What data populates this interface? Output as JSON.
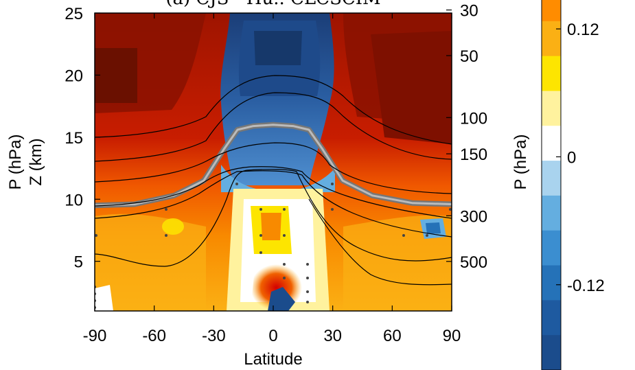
{
  "chart_data": {
    "type": "heatmap",
    "title": "(a) CJS - Hu.. CLCSCIM",
    "xlabel": "Latitude",
    "ylabel_left": "P (hPa)",
    "ylabel_left_secondary": "Z (km)",
    "ylabel_colorbar": "P (hPa)",
    "x_ticks": [
      "-90",
      "-60",
      "-30",
      "0",
      "30",
      "60",
      "90"
    ],
    "x_range": [
      -90,
      90
    ],
    "z_ticks": [
      "5",
      "10",
      "15",
      "20",
      "25"
    ],
    "z_range": [
      1,
      25
    ],
    "p_ticks": [
      "500",
      "300",
      "150",
      "100",
      "50",
      "30"
    ],
    "colorbar_ticks": [
      "0.12",
      "0",
      "-0.12"
    ],
    "colorbar_range": [
      -0.2,
      0.16
    ],
    "colorbar_levels": [
      {
        "color": "#ff8c00"
      },
      {
        "color": "#fbb014"
      },
      {
        "color": "#fde500"
      },
      {
        "color": "#fff29e"
      },
      {
        "color": "#ffffff"
      },
      {
        "color": "#a9d3ee"
      },
      {
        "color": "#64aee0"
      },
      {
        "color": "#3b8ed0"
      },
      {
        "color": "#2572b8"
      },
      {
        "color": "#1e5aa0"
      },
      {
        "color": "#1b4c8c"
      }
    ],
    "tropopause_z_by_latitude": {
      "x": [
        -90,
        -70,
        -50,
        -35,
        -25,
        -18,
        -10,
        0,
        10,
        18,
        25,
        35,
        50,
        70,
        90
      ],
      "z": [
        9.5,
        9.6,
        10.3,
        11.5,
        14.0,
        15.6,
        15.9,
        16.0,
        15.9,
        15.6,
        14.0,
        11.5,
        10.3,
        9.7,
        9.6
      ]
    }
  }
}
